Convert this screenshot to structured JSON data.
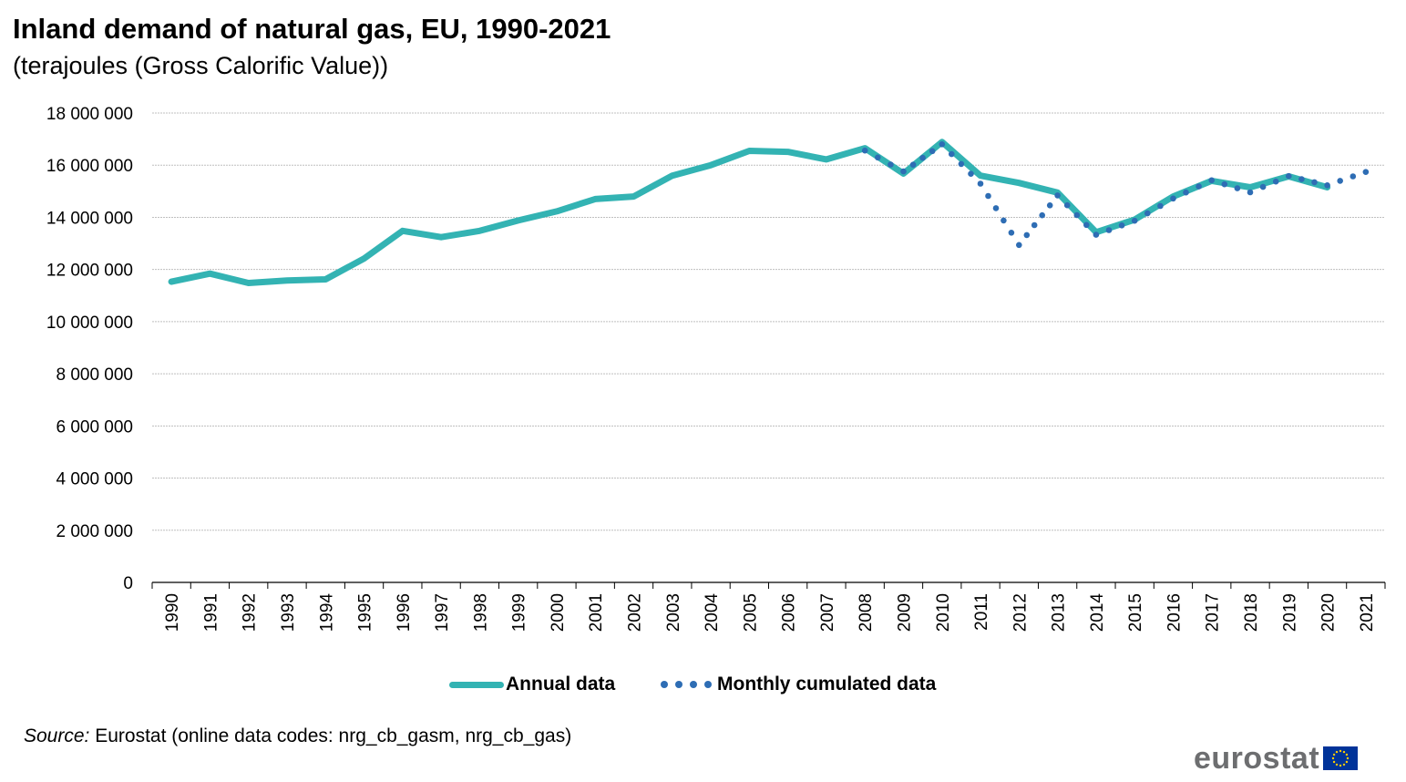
{
  "title": "Inland demand of natural gas, EU, 1990-2021",
  "subtitle": "(terajoules (Gross Calorific Value))",
  "source_label": "Source:",
  "source_text": " Eurostat (online data codes: nrg_cb_gasm, nrg_cb_gas)",
  "logo_text": "eurostat",
  "colors": {
    "annual": "#33b3b3",
    "monthly": "#2e6db4",
    "grid": "#bfbfbf",
    "flag": "#003399",
    "flag_stars": "#ffcc00"
  },
  "chart_data": {
    "type": "line",
    "title": "Inland demand of natural gas, EU, 1990-2021",
    "subtitle": "(terajoules (Gross Calorific Value))",
    "ylim": [
      0,
      18000000
    ],
    "yticks": [
      0,
      2000000,
      4000000,
      6000000,
      8000000,
      10000000,
      12000000,
      14000000,
      16000000,
      18000000
    ],
    "ytick_labels": [
      "0",
      "2 000 000",
      "4 000 000",
      "6 000 000",
      "8 000 000",
      "10 000 000",
      "12 000 000",
      "14 000 000",
      "16 000 000",
      "18 000 000"
    ],
    "grid": true,
    "legend_position": "bottom",
    "categories": [
      "1990",
      "1991",
      "1992",
      "1993",
      "1994",
      "1995",
      "1996",
      "1997",
      "1998",
      "1999",
      "2000",
      "2001",
      "2002",
      "2003",
      "2004",
      "2005",
      "2006",
      "2007",
      "2008",
      "2009",
      "2010",
      "2011",
      "2012",
      "2013",
      "2014",
      "2015",
      "2016",
      "2017",
      "2018",
      "2019",
      "2020",
      "2021"
    ],
    "series": [
      {
        "name": "Annual data",
        "style": "solid",
        "values": [
          11530000,
          11840000,
          11480000,
          11580000,
          11620000,
          12420000,
          13480000,
          13240000,
          13480000,
          13880000,
          14230000,
          14700000,
          14800000,
          15600000,
          16000000,
          16550000,
          16510000,
          16220000,
          16650000,
          15680000,
          16890000,
          15600000,
          15320000,
          14950000,
          13430000,
          13910000,
          14800000,
          15400000,
          15150000,
          15570000,
          15150000,
          null
        ]
      },
      {
        "name": "Monthly cumulated data",
        "style": "dotted",
        "values": [
          null,
          null,
          null,
          null,
          null,
          null,
          null,
          null,
          null,
          null,
          null,
          null,
          null,
          null,
          null,
          null,
          null,
          null,
          16560000,
          15760000,
          16800000,
          15290000,
          12940000,
          14840000,
          13330000,
          13870000,
          14720000,
          15420000,
          14960000,
          15580000,
          15230000,
          15740000
        ]
      }
    ]
  },
  "legend": [
    {
      "label": "Annual data"
    },
    {
      "label": "Monthly cumulated data"
    }
  ]
}
